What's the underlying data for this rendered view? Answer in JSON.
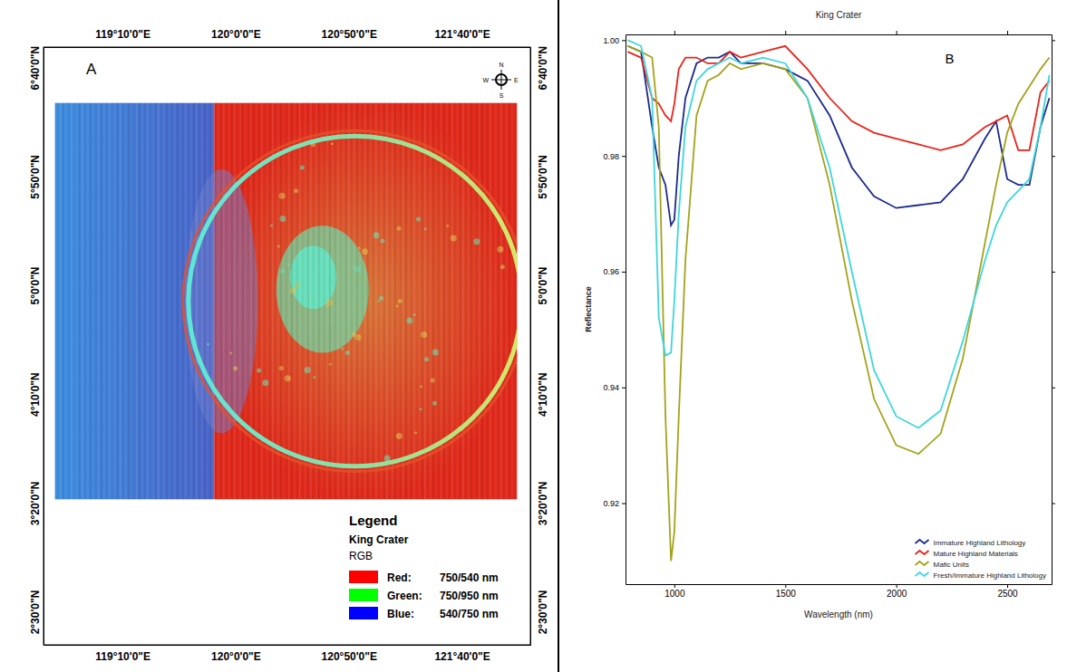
{
  "chart_data": [
    {
      "type": "map",
      "panel_label": "A",
      "xlim": [
        118.585,
        122.17
      ],
      "ylim": [
        2.247,
        6.824
      ],
      "xticks": [
        {
          "value": 119.1667,
          "label": "119°10'0\"E"
        },
        {
          "value": 120,
          "label": "120°0'0\"E"
        },
        {
          "value": 120.8333,
          "label": "120°50'0\"E"
        },
        {
          "value": 121.6667,
          "label": "121°40'0\"E"
        }
      ],
      "yticks": [
        {
          "value": 2.5,
          "label": "2°30'0\"N"
        },
        {
          "value": 3.3333,
          "label": "3°20'0\"N"
        },
        {
          "value": 4.1667,
          "label": "4°10'0\"N"
        },
        {
          "value": 5,
          "label": "5°0'0\"N"
        },
        {
          "value": 5.8333,
          "label": "5°50'0\"N"
        },
        {
          "value": 6.6667,
          "label": "6°40'0\"N"
        }
      ],
      "compass": {
        "n": "N",
        "s": "S",
        "e": "E",
        "w": "W"
      },
      "key": {
        "title": "Legend",
        "subtitle": "King Crater",
        "heading": "RGB",
        "entries": [
          {
            "name": "Red:",
            "band": "750/540 nm",
            "color": "#ff0000"
          },
          {
            "name": "Green:",
            "band": "750/950 nm",
            "color": "#00ff00"
          },
          {
            "name": "Blue:",
            "band": "540/750 nm",
            "color": "#0000ff"
          }
        ]
      }
    },
    {
      "type": "line",
      "panel_label": "B",
      "title": "King Crater",
      "x_label": "Wavelength (nm)",
      "y_label": "Reflectance",
      "legend": "lower right",
      "xlim": [
        780,
        2700
      ],
      "xticks": [
        1000,
        1500,
        2000,
        2500
      ],
      "ylim": [
        0.906,
        1.001
      ],
      "yticks": [
        0.92,
        0.94,
        0.96,
        0.98,
        {
          "value": 1,
          "label": "1.00"
        }
      ],
      "x": [
        790,
        850,
        900,
        930,
        960,
        985,
        1000,
        1020,
        1050,
        1100,
        1150,
        1200,
        1250,
        1300,
        1400,
        1500,
        1600,
        1700,
        1800,
        1900,
        2000,
        2100,
        2200,
        2300,
        2400,
        2450,
        2500,
        2550,
        2600,
        2650,
        2690
      ],
      "series": [
        {
          "name": "Immature Highland Lithology",
          "color": "#1c2a8c",
          "values": [
            0.999,
            0.998,
            0.985,
            0.978,
            0.975,
            0.968,
            0.969,
            0.98,
            0.99,
            0.996,
            0.997,
            0.997,
            0.998,
            0.996,
            0.996,
            0.995,
            0.993,
            0.987,
            0.978,
            0.973,
            0.971,
            0.9715,
            0.972,
            0.976,
            0.983,
            0.986,
            0.976,
            0.975,
            0.975,
            0.985,
            0.99
          ]
        },
        {
          "name": "Mature Highland Materials",
          "color": "#e8231a",
          "values": [
            0.998,
            0.997,
            0.99,
            0.989,
            0.987,
            0.986,
            0.989,
            0.995,
            0.997,
            0.997,
            0.996,
            0.996,
            0.998,
            0.997,
            0.998,
            0.999,
            0.995,
            0.99,
            0.986,
            0.984,
            0.983,
            0.982,
            0.981,
            0.982,
            0.985,
            0.986,
            0.987,
            0.981,
            0.981,
            0.991,
            0.993
          ]
        },
        {
          "name": "Mafic Units",
          "color": "#a3a31c",
          "values": [
            0.999,
            0.998,
            0.997,
            0.985,
            0.935,
            0.91,
            0.915,
            0.935,
            0.962,
            0.987,
            0.993,
            0.994,
            0.996,
            0.995,
            0.996,
            0.995,
            0.99,
            0.975,
            0.955,
            0.938,
            0.93,
            0.9285,
            0.932,
            0.945,
            0.965,
            0.975,
            0.984,
            0.989,
            0.992,
            0.995,
            0.997
          ]
        },
        {
          "name": "Fresh/Immature Highland Lithology",
          "color": "#3fd6dc",
          "values": [
            1.0,
            0.999,
            0.99,
            0.952,
            0.9455,
            0.946,
            0.955,
            0.97,
            0.985,
            0.993,
            0.995,
            0.996,
            0.997,
            0.996,
            0.997,
            0.996,
            0.99,
            0.978,
            0.96,
            0.943,
            0.935,
            0.933,
            0.936,
            0.948,
            0.962,
            0.968,
            0.972,
            0.974,
            0.976,
            0.985,
            0.994
          ]
        }
      ]
    }
  ]
}
